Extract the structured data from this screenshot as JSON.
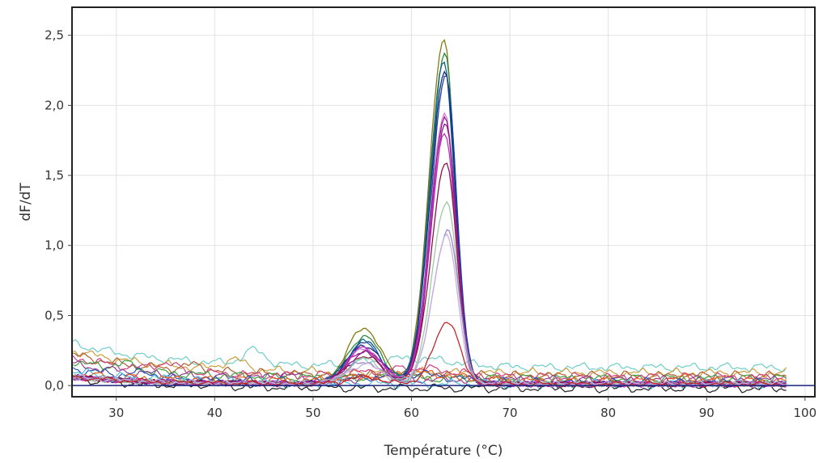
{
  "chart_data": {
    "type": "line",
    "xlabel": "Température (°C)",
    "ylabel": "dF/dT",
    "xlim": [
      25.5,
      101
    ],
    "ylim": [
      -0.08,
      2.7
    ],
    "x_ticks": [
      "30",
      "40",
      "50",
      "60",
      "70",
      "80",
      "90",
      "100"
    ],
    "x_tick_values": [
      30,
      40,
      50,
      60,
      70,
      80,
      90,
      100
    ],
    "y_ticks": [
      "0,0",
      "0,5",
      "1,0",
      "1,5",
      "2,0",
      "2,5"
    ],
    "y_tick_values": [
      0,
      0.5,
      1.0,
      1.5,
      2.0,
      2.5
    ],
    "grid": true,
    "baseline": {
      "y": 0,
      "color": "#1a237e"
    },
    "peak_series": [
      {
        "color": "#8a7a10",
        "peak_x": 63.3,
        "peak_y": 2.47,
        "shoulder": 0.4
      },
      {
        "color": "#2e8b3a",
        "peak_x": 63.4,
        "peak_y": 2.35,
        "shoulder": 0.34
      },
      {
        "color": "#0b6a8a",
        "peak_x": 63.3,
        "peak_y": 2.3,
        "shoulder": 0.3
      },
      {
        "color": "#1a2a80",
        "peak_x": 63.4,
        "peak_y": 2.24,
        "shoulder": 0.28
      },
      {
        "color": "#2040a0",
        "peak_x": 63.5,
        "peak_y": 2.2,
        "shoulder": 0.3
      },
      {
        "color": "#d080d0",
        "peak_x": 63.4,
        "peak_y": 1.94,
        "shoulder": 0.25
      },
      {
        "color": "#a01890",
        "peak_x": 63.4,
        "peak_y": 1.9,
        "shoulder": 0.24
      },
      {
        "color": "#8a1a8a",
        "peak_x": 63.5,
        "peak_y": 1.85,
        "shoulder": 0.22
      },
      {
        "color": "#c030c0",
        "peak_x": 63.4,
        "peak_y": 1.8,
        "shoulder": 0.26
      },
      {
        "color": "#901048",
        "peak_x": 63.5,
        "peak_y": 1.58,
        "shoulder": 0.2
      },
      {
        "color": "#a0c8a0",
        "peak_x": 63.6,
        "peak_y": 1.3,
        "shoulder": 0.18
      },
      {
        "color": "#9a8ac8",
        "peak_x": 63.7,
        "peak_y": 1.1,
        "shoulder": 0.16
      },
      {
        "color": "#c8b0e0",
        "peak_x": 63.6,
        "peak_y": 1.05,
        "shoulder": 0.14
      },
      {
        "color": "#c02828",
        "peak_x": 63.8,
        "peak_y": 0.45,
        "shoulder": 0.05
      }
    ],
    "noise_series": [
      {
        "color": "#6ecdc8",
        "start": 0.3,
        "level": 0.13,
        "bump_x": 44,
        "bump_y": 0.1
      },
      {
        "color": "#c8a040",
        "start": 0.25,
        "level": 0.09,
        "bump_x": 42,
        "bump_y": 0.07
      },
      {
        "color": "#b06030",
        "start": 0.22,
        "level": 0.07,
        "bump_x": 38,
        "bump_y": 0.04
      },
      {
        "color": "#d04080",
        "start": 0.2,
        "level": 0.06,
        "bump_x": 35,
        "bump_y": 0.05
      },
      {
        "color": "#40a040",
        "start": 0.17,
        "level": 0.05,
        "bump_x": 31,
        "bump_y": 0.04
      },
      {
        "color": "#904090",
        "start": 0.15,
        "level": 0.04,
        "bump_x": 47,
        "bump_y": 0.03
      },
      {
        "color": "#3050b0",
        "start": 0.12,
        "level": 0.02,
        "bump_x": 33,
        "bump_y": 0.03
      },
      {
        "color": "#50c0e0",
        "start": 0.1,
        "level": 0.01,
        "bump_x": 36,
        "bump_y": 0.02
      },
      {
        "color": "#202020",
        "start": 0.05,
        "level": -0.02,
        "bump_x": 40,
        "bump_y": 0.02
      },
      {
        "color": "#e06020",
        "start": 0.08,
        "level": 0.03,
        "bump_x": 88,
        "bump_y": 0.03
      }
    ]
  }
}
